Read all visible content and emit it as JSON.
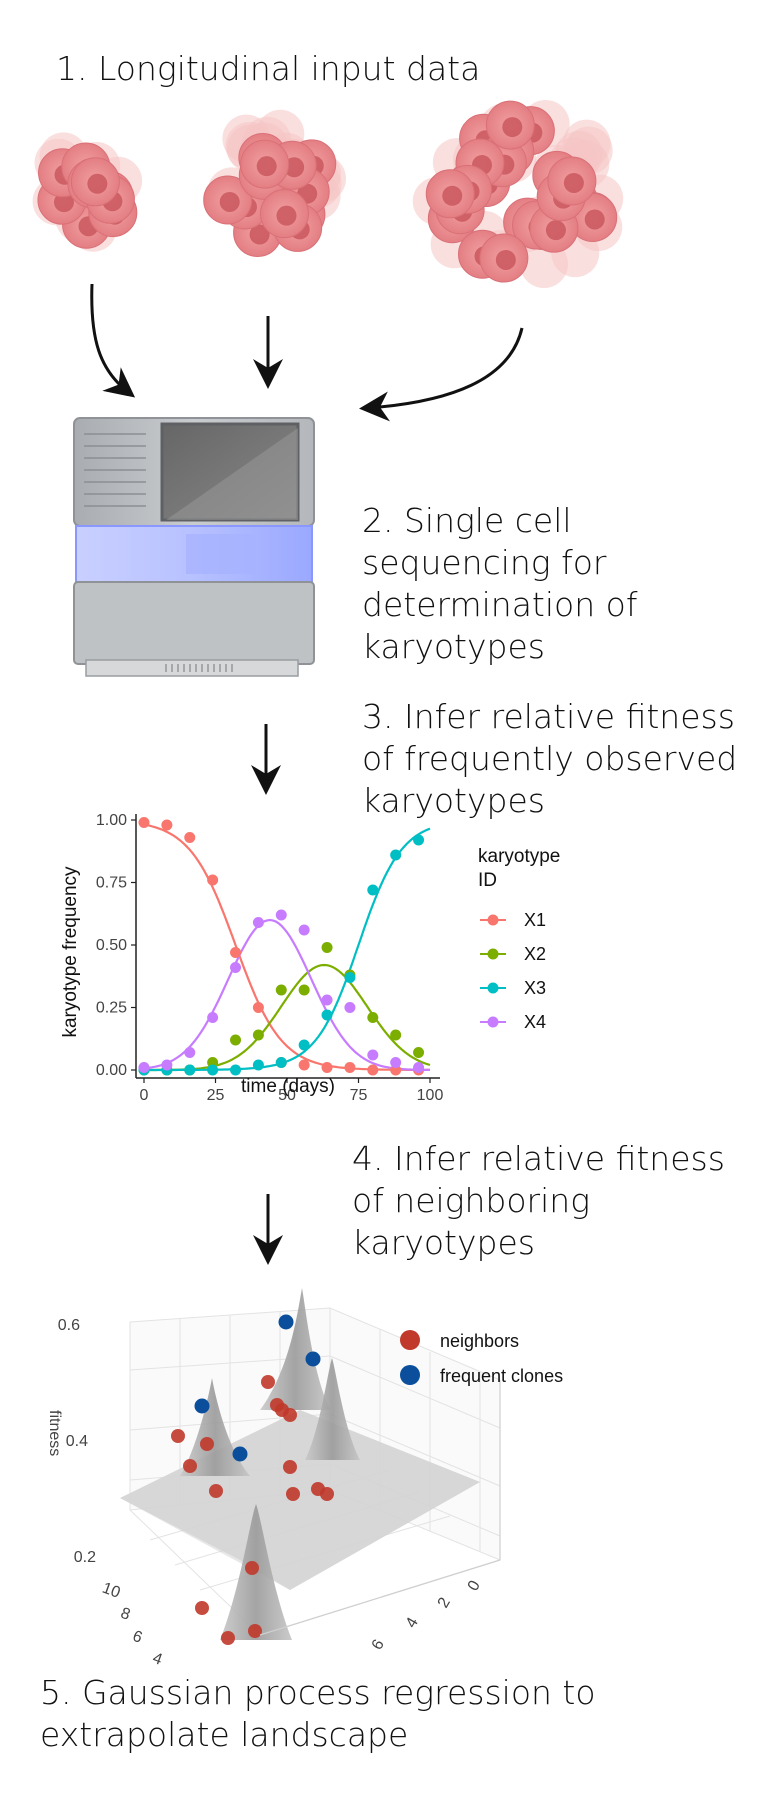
{
  "steps": {
    "s1": "1.  Longitudinal input data",
    "s2": "2. Single cell sequencing for determination of karyotypes",
    "s3": "3. Infer relative fitness of frequently observed karyotypes",
    "s4": "4. Infer relative fitness of neighboring karyotypes",
    "s5": "5. Gaussian process regression to extrapolate landscape"
  },
  "colors": {
    "cell_fill": "#e8868a",
    "cell_dark": "#c9575e",
    "cell_halo": "#f5c4c4",
    "sequencer_grey": "#b8bbbf",
    "sequencer_blue": "#b8c4ff",
    "neighbors": "#c0392b",
    "frequent": "#0b4f9c"
  },
  "chart_data": {
    "type": "line",
    "xlabel": "time (days)",
    "ylabel": "karyotype frequency",
    "xlim": [
      0,
      100
    ],
    "ylim": [
      0,
      1
    ],
    "x_ticks": [
      "0",
      "25",
      "50",
      "75",
      "100"
    ],
    "y_ticks": [
      "0.00",
      "0.25",
      "0.50",
      "0.75",
      "1.00"
    ],
    "legend_title": "karyotype\nID",
    "legend_position": "right",
    "x": [
      0,
      8,
      16,
      24,
      32,
      40,
      48,
      56,
      64,
      72,
      80,
      88,
      96
    ],
    "series": [
      {
        "name": "X1",
        "color": "#f8766d",
        "points": [
          0.99,
          0.98,
          0.93,
          0.76,
          0.47,
          0.25,
          0.03,
          0.02,
          0.01,
          0.01,
          0.0,
          0.0,
          0.0
        ],
        "fit_center": 32,
        "fit_width": 8
      },
      {
        "name": "X2",
        "color": "#7cae00",
        "points": [
          0.0,
          0.0,
          0.0,
          0.03,
          0.12,
          0.14,
          0.32,
          0.32,
          0.49,
          0.38,
          0.21,
          0.14,
          0.07
        ],
        "fit_peak": 0.42,
        "fit_mu": 63,
        "fit_sigma": 15
      },
      {
        "name": "X3",
        "color": "#00bfc4",
        "points": [
          0.0,
          0.0,
          0.0,
          0.0,
          0.0,
          0.02,
          0.03,
          0.1,
          0.22,
          0.37,
          0.72,
          0.86,
          0.92
        ],
        "fit_center": 75,
        "fit_width": 7.5
      },
      {
        "name": "X4",
        "color": "#c77cff",
        "points": [
          0.01,
          0.02,
          0.07,
          0.21,
          0.41,
          0.59,
          0.62,
          0.56,
          0.28,
          0.25,
          0.06,
          0.03,
          0.01
        ],
        "fit_peak": 0.6,
        "fit_mu": 44,
        "fit_sigma": 14.5
      }
    ]
  },
  "landscape": {
    "z_axis_title": "fitness",
    "z_ticks": [
      "0.6",
      "0.4",
      "0.2"
    ],
    "y_ticks": [
      "10",
      "8",
      "6",
      "4"
    ],
    "x_ticks": [
      "0",
      "2",
      "4",
      "6"
    ],
    "legend": [
      {
        "label": "neighbors",
        "color": "#c0392b"
      },
      {
        "label": "frequent clones",
        "color": "#0b4f9c"
      }
    ]
  }
}
